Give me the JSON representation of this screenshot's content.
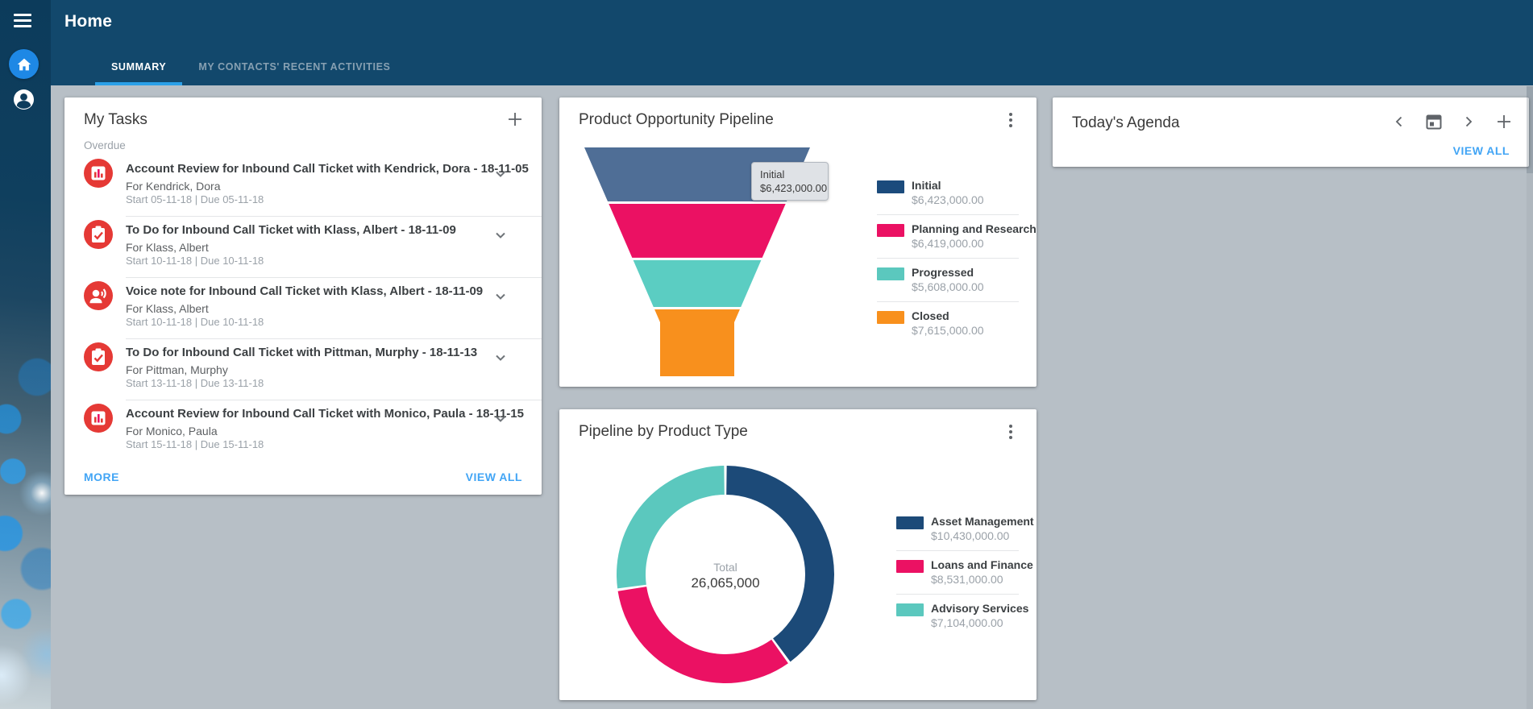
{
  "header": {
    "title": "Home",
    "tabs": [
      {
        "label": "SUMMARY",
        "active": true
      },
      {
        "label": "MY CONTACTS' RECENT ACTIVITIES",
        "active": false
      }
    ]
  },
  "my_tasks": {
    "title": "My Tasks",
    "group": "Overdue",
    "more": "MORE",
    "view_all": "VIEW ALL",
    "items": [
      {
        "icon": "bar-chart",
        "title": "Account Review for Inbound Call Ticket with Kendrick, Dora - 18-11-05",
        "subtitle": "For Kendrick, Dora",
        "dates": "Start 05-11-18 | Due 05-11-18"
      },
      {
        "icon": "todo-check",
        "title": "To Do for Inbound Call Ticket with Klass, Albert - 18-11-09",
        "subtitle": "For Klass, Albert",
        "dates": "Start 10-11-18 | Due 10-11-18"
      },
      {
        "icon": "voice-note",
        "title": "Voice note for Inbound Call Ticket with Klass, Albert - 18-11-09",
        "subtitle": "For Klass, Albert",
        "dates": "Start 10-11-18 | Due 10-11-18"
      },
      {
        "icon": "todo-check",
        "title": "To Do for Inbound Call Ticket with Pittman, Murphy - 18-11-13",
        "subtitle": "For Pittman, Murphy",
        "dates": "Start 13-11-18 | Due 13-11-18"
      },
      {
        "icon": "bar-chart",
        "title": "Account Review for Inbound Call Ticket with Monico, Paula - 18-11-15",
        "subtitle": "For Monico, Paula",
        "dates": "Start 15-11-18 | Due 15-11-18"
      }
    ]
  },
  "funnel": {
    "title": "Product Opportunity Pipeline",
    "tooltip": {
      "label": "Initial",
      "value": "$6,423,000.00"
    }
  },
  "donut": {
    "title": "Pipeline by Product Type",
    "center_label": "Total",
    "center_value": "26,065,000"
  },
  "agenda": {
    "title": "Today's Agenda",
    "view_all": "VIEW ALL"
  },
  "chart_data": [
    {
      "type": "funnel",
      "title": "Product Opportunity Pipeline",
      "legend_position": "right",
      "points": [
        {
          "label": "Initial",
          "value": 6423000,
          "display": "$6,423,000.00",
          "color": "#1b4b7c",
          "fill": "#4f6e96"
        },
        {
          "label": "Planning and Research",
          "value": 6419000,
          "display": "$6,419,000.00",
          "color": "#eb1163",
          "fill": "#eb1163"
        },
        {
          "label": "Progressed",
          "value": 5608000,
          "display": "$5,608,000.00",
          "color": "#5bc8be",
          "fill": "#5bcdc2"
        },
        {
          "label": "Closed",
          "value": 7615000,
          "display": "$7,615,000.00",
          "color": "#f8901d",
          "fill": "#f8901d"
        }
      ]
    },
    {
      "type": "pie",
      "donut": true,
      "title": "Pipeline by Product Type",
      "legend_position": "right",
      "total_label": "Total",
      "total_value": 26065000,
      "points": [
        {
          "label": "Asset Management",
          "value": 10430000,
          "display": "$10,430,000.00",
          "color": "#1c4a78"
        },
        {
          "label": "Loans and Finance",
          "value": 8531000,
          "display": "$8,531,000.00",
          "color": "#eb1163"
        },
        {
          "label": "Advisory Services",
          "value": 7104000,
          "display": "$7,104,000.00",
          "color": "#5bc8be"
        }
      ]
    }
  ],
  "colors": {
    "header": "#12486c",
    "tab_underline": "#2aa0e8",
    "link": "#42a5f5",
    "task_icon": "#e53935",
    "home_button": "#1e88e5",
    "background": "#b7bfc6"
  }
}
